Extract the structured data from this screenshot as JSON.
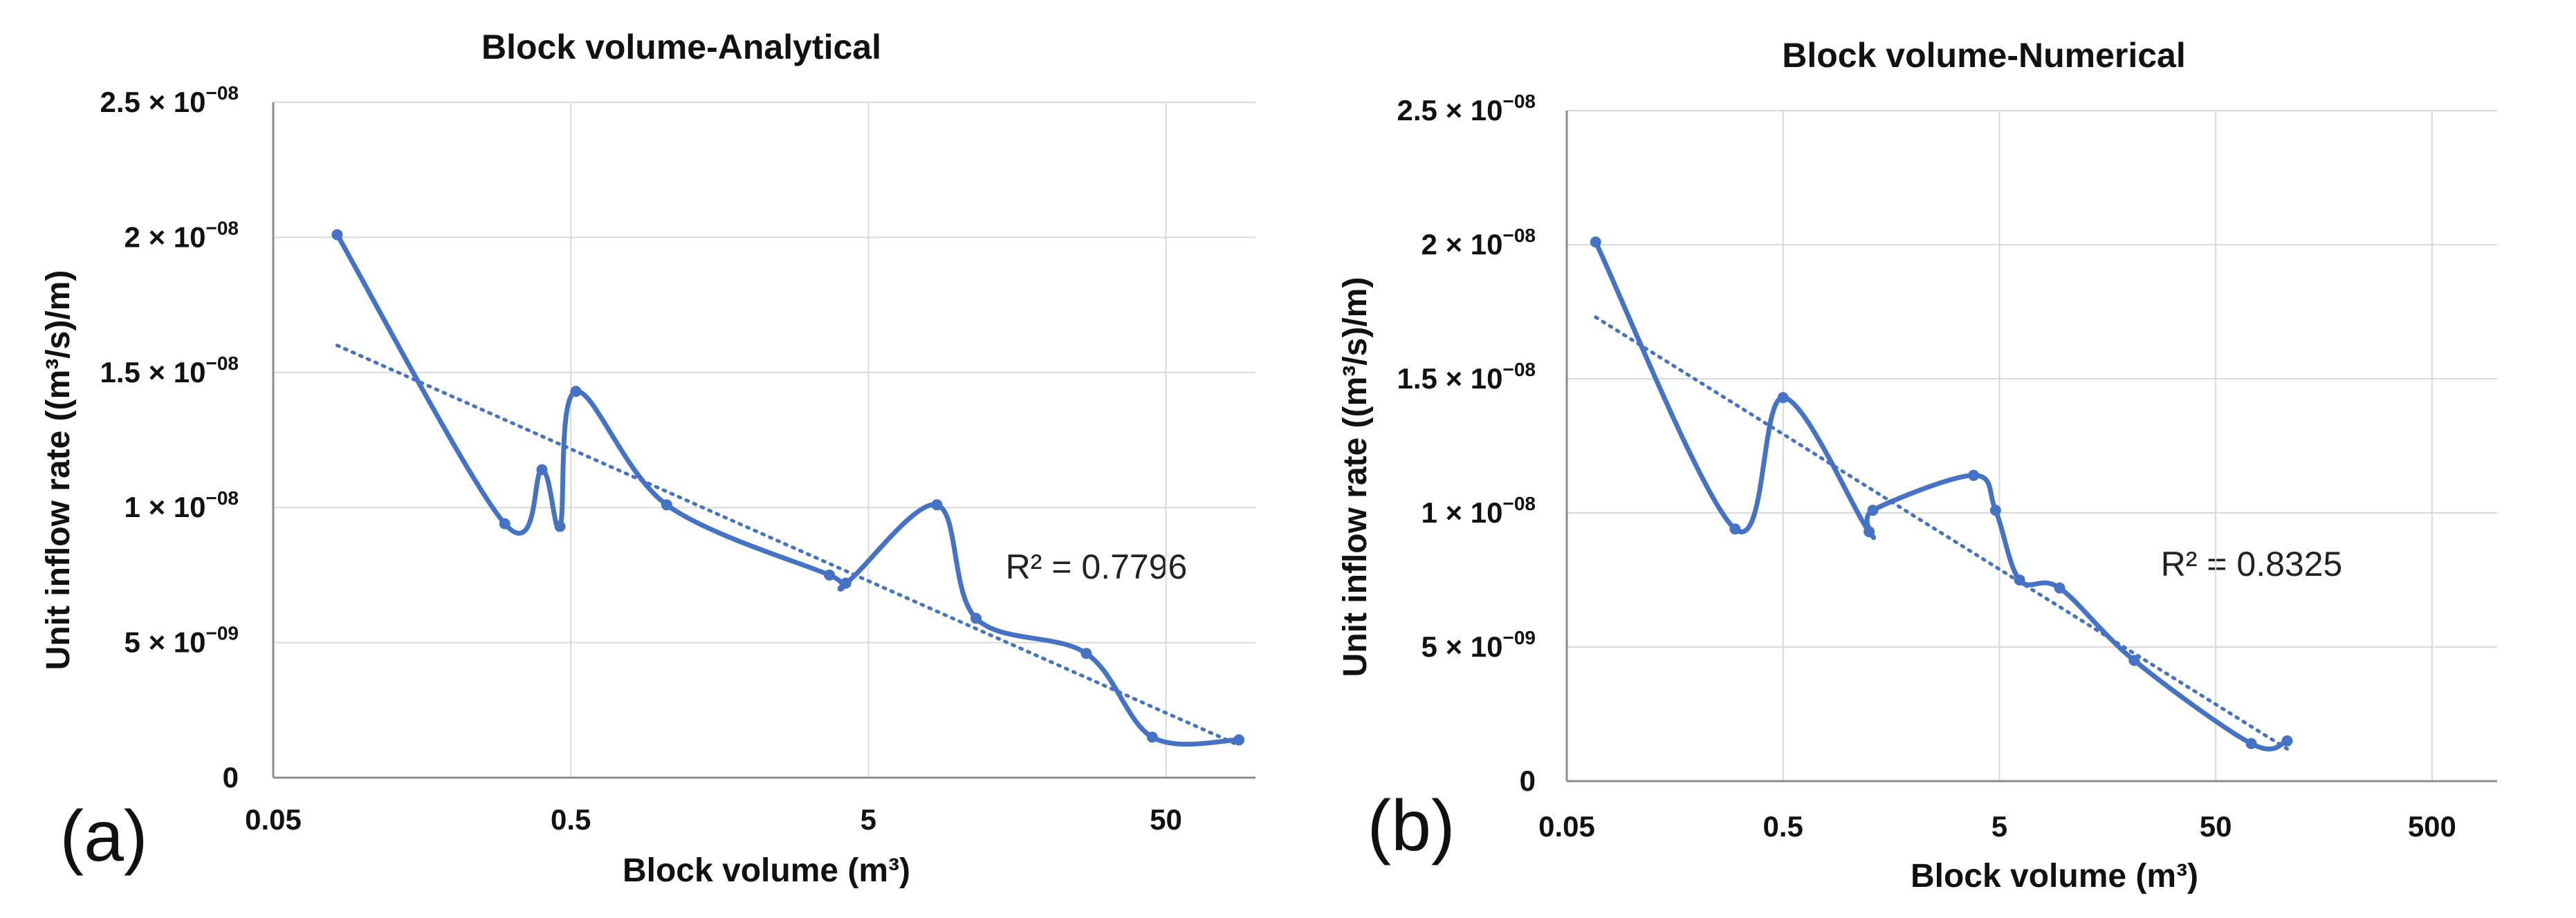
{
  "chart_data": [
    {
      "type": "line",
      "panel_label": "(a)",
      "title": "Block volume-Analytical",
      "xlabel": "Block volume (m³)",
      "ylabel": "Unit inflow rate ((m³/s)/m)",
      "x_scale": "log",
      "xlim": [
        0.05,
        100
      ],
      "ylim": [
        0,
        2.5e-08
      ],
      "x_ticks": [
        0.05,
        0.5,
        5,
        50
      ],
      "x_tick_labels": [
        "0.05",
        "0.5",
        "5",
        "50"
      ],
      "y_ticks": [
        0,
        5e-09,
        1e-08,
        1.5e-08,
        2e-08,
        2.5e-08
      ],
      "y_tick_labels": [
        {
          "base": "0",
          "exp": ""
        },
        {
          "base": "5 × 10",
          "exp": "−09"
        },
        {
          "base": "1 × 10",
          "exp": "−08"
        },
        {
          "base": "1.5 × 10",
          "exp": "−08"
        },
        {
          "base": "2 × 10",
          "exp": "−08"
        },
        {
          "base": "2.5 × 10",
          "exp": "−08"
        }
      ],
      "annotation": "R² = 0.7796",
      "series": [
        {
          "name": "Block volume-Analytical",
          "x": [
            0.082,
            0.3,
            0.4,
            0.46,
            0.52,
            1.05,
            3.7,
            4.2,
            8.5,
            11.5,
            27,
            45,
            88
          ],
          "y": [
            2.01e-08,
            9.4e-09,
            1.14e-08,
            9.3e-09,
            1.43e-08,
            1.01e-08,
            7.5e-09,
            7.2e-09,
            1.01e-08,
            5.9e-09,
            4.6e-09,
            1.5e-09,
            1.4e-09
          ]
        }
      ],
      "trendline": {
        "type": "linear",
        "x": [
          0.082,
          88
        ],
        "y": [
          1.6e-08,
          1.2e-09
        ]
      }
    },
    {
      "type": "line",
      "panel_label": "(b)",
      "title": "Block volume-Numerical",
      "xlabel": "Block volume (m³)",
      "ylabel": "Unit inflow rate ((m³/s)/m)",
      "x_scale": "log",
      "xlim": [
        0.05,
        1000
      ],
      "ylim": [
        0,
        2.5e-08
      ],
      "x_ticks": [
        0.05,
        0.5,
        5,
        50,
        500
      ],
      "x_tick_labels": [
        "0.05",
        "0.5",
        "5",
        "50",
        "500"
      ],
      "y_ticks": [
        0,
        5e-09,
        1e-08,
        1.5e-08,
        2e-08,
        2.5e-08
      ],
      "y_tick_labels": [
        {
          "base": "0",
          "exp": ""
        },
        {
          "base": "5 × 10",
          "exp": "−09"
        },
        {
          "base": "1 × 10",
          "exp": "−08"
        },
        {
          "base": "1.5 × 10",
          "exp": "−08"
        },
        {
          "base": "2 × 10",
          "exp": "−08"
        },
        {
          "base": "2.5 × 10",
          "exp": "−08"
        }
      ],
      "annotation": "R² = 0.8325",
      "series": [
        {
          "name": "Block volume-Numerical",
          "x": [
            0.068,
            0.3,
            0.5,
            1.25,
            1.3,
            3.8,
            4.8,
            6.2,
            9.5,
            21,
            73,
            107
          ],
          "y": [
            2.01e-08,
            9.4e-09,
            1.43e-08,
            9.3e-09,
            1.01e-08,
            1.14e-08,
            1.01e-08,
            7.5e-09,
            7.2e-09,
            4.5e-09,
            1.4e-09,
            1.5e-09
          ]
        }
      ],
      "trendline": {
        "type": "linear",
        "x": [
          0.068,
          107
        ],
        "y": [
          1.73e-08,
          1.2e-09
        ]
      }
    }
  ]
}
